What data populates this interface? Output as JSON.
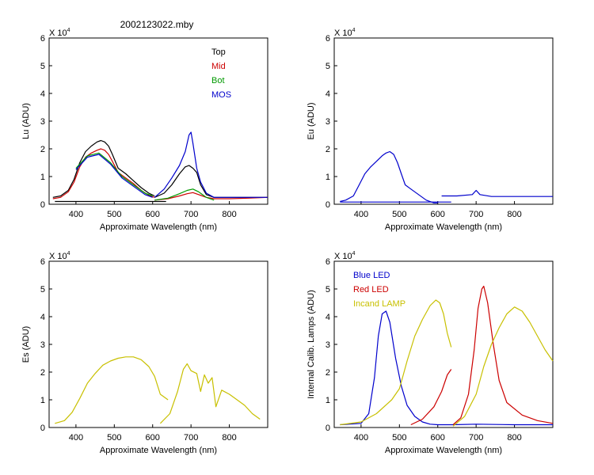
{
  "figure": {
    "title": "2002123022.mby"
  },
  "chart_data": [
    {
      "type": "line",
      "id": "lu",
      "ylabel": "Lu (ADU)",
      "xlabel": "Approximate Wavelength (nm)",
      "multiplier": "X 10",
      "multiplier_exp": "4",
      "xlim": [
        330,
        900
      ],
      "ylim": [
        0,
        6
      ],
      "xticks": [
        "400",
        "500",
        "600",
        "700",
        "800"
      ],
      "xtick_values": [
        400,
        500,
        600,
        700,
        800
      ],
      "yticks": [
        "0",
        "1",
        "2",
        "3",
        "4",
        "5",
        "6"
      ],
      "legend_position": "top-right",
      "legend": [
        {
          "name": "Top",
          "color": "#000000"
        },
        {
          "name": "Mid",
          "color": "#cc0000"
        },
        {
          "name": "Bot",
          "color": "#009900"
        },
        {
          "name": "MOS",
          "color": "#0000cc"
        }
      ],
      "series": [
        {
          "name": "Top",
          "color": "#000000",
          "x": [
            340,
            360,
            380,
            395,
            410,
            425,
            440,
            455,
            465,
            475,
            485,
            495,
            510,
            530,
            550,
            570,
            590,
            605
          ],
          "y": [
            0.25,
            0.3,
            0.5,
            0.9,
            1.5,
            1.9,
            2.1,
            2.25,
            2.3,
            2.25,
            2.1,
            1.8,
            1.3,
            1.1,
            0.85,
            0.6,
            0.4,
            0.3
          ]
        },
        {
          "name": "Mid",
          "color": "#cc0000",
          "x": [
            340,
            360,
            380,
            395,
            410,
            425,
            440,
            455,
            465,
            475,
            485,
            495,
            510,
            530,
            550,
            570,
            590,
            605
          ],
          "y": [
            0.2,
            0.25,
            0.45,
            0.8,
            1.35,
            1.7,
            1.85,
            1.95,
            2.0,
            1.95,
            1.8,
            1.55,
            1.15,
            0.95,
            0.75,
            0.5,
            0.32,
            0.25
          ]
        },
        {
          "name": "Bot",
          "color": "#009900",
          "x": [
            400,
            430,
            460,
            490,
            520,
            550,
            580,
            600
          ],
          "y": [
            1.3,
            1.75,
            1.85,
            1.5,
            1.0,
            0.7,
            0.4,
            0.3
          ]
        },
        {
          "name": "MOS",
          "color": "#0000cc",
          "x": [
            400,
            430,
            460,
            490,
            520,
            550,
            580,
            600
          ],
          "y": [
            1.25,
            1.7,
            1.8,
            1.45,
            0.95,
            0.65,
            0.35,
            0.25
          ]
        },
        {
          "name": "Top (2)",
          "color": "#000000",
          "x": [
            605,
            630,
            650,
            670,
            685,
            695,
            705,
            715,
            725,
            740,
            760,
            800,
            850,
            900
          ],
          "y": [
            0.25,
            0.4,
            0.7,
            1.1,
            1.35,
            1.4,
            1.3,
            1.15,
            0.7,
            0.35,
            0.25,
            0.25,
            0.25,
            0.25
          ]
        },
        {
          "name": "Mid (2)",
          "color": "#cc0000",
          "x": [
            605,
            640,
            670,
            690,
            705,
            720,
            740,
            760,
            800,
            850,
            900
          ],
          "y": [
            0.15,
            0.2,
            0.3,
            0.38,
            0.42,
            0.35,
            0.25,
            0.2,
            0.2,
            0.22,
            0.25
          ]
        },
        {
          "name": "Bot (2)",
          "color": "#009900",
          "x": [
            605,
            640,
            670,
            690,
            705,
            720,
            740,
            760
          ],
          "y": [
            0.15,
            0.22,
            0.38,
            0.5,
            0.55,
            0.45,
            0.25,
            0.15
          ]
        },
        {
          "name": "MOS (2)",
          "color": "#0000cc",
          "x": [
            605,
            630,
            650,
            670,
            685,
            695,
            700,
            705,
            715,
            725,
            740,
            760,
            800,
            850,
            900
          ],
          "y": [
            0.25,
            0.55,
            0.95,
            1.4,
            1.9,
            2.5,
            2.6,
            2.2,
            1.3,
            0.8,
            0.4,
            0.25,
            0.25,
            0.25,
            0.25
          ]
        },
        {
          "name": "baseline",
          "color": "#000000",
          "x": [
            345,
            635
          ],
          "y": [
            0.1,
            0.1
          ]
        }
      ]
    },
    {
      "type": "line",
      "id": "eu",
      "ylabel": "Eu  (ADU)",
      "xlabel": "Approximate Wavelength (nm)",
      "multiplier": "X 10",
      "multiplier_exp": "4",
      "xlim": [
        330,
        900
      ],
      "ylim": [
        0,
        6
      ],
      "xticks": [
        "400",
        "500",
        "600",
        "700",
        "800"
      ],
      "xtick_values": [
        400,
        500,
        600,
        700,
        800
      ],
      "yticks": [
        "0",
        "1",
        "2",
        "3",
        "4",
        "5",
        "6"
      ],
      "legend": [],
      "series": [
        {
          "name": "Eu",
          "color": "#0000cc",
          "x": [
            345,
            360,
            380,
            395,
            410,
            425,
            440,
            455,
            465,
            475,
            485,
            495,
            505,
            515,
            530,
            550,
            570,
            590,
            600
          ],
          "y": [
            0.1,
            0.15,
            0.3,
            0.7,
            1.1,
            1.35,
            1.55,
            1.75,
            1.85,
            1.9,
            1.8,
            1.5,
            1.1,
            0.7,
            0.55,
            0.35,
            0.15,
            0.05,
            0.05
          ]
        },
        {
          "name": "Eu (2)",
          "color": "#0000cc",
          "x": [
            610,
            650,
            690,
            700,
            710,
            740,
            800,
            850,
            900
          ],
          "y": [
            0.3,
            0.3,
            0.35,
            0.5,
            0.35,
            0.28,
            0.28,
            0.28,
            0.28
          ]
        },
        {
          "name": "baseline",
          "color": "#0000cc",
          "x": [
            345,
            635
          ],
          "y": [
            0.08,
            0.08
          ]
        }
      ]
    },
    {
      "type": "line",
      "id": "es",
      "ylabel": "Es  (ADU)",
      "xlabel": "Approximate Wavelength (nm)",
      "multiplier": "X 10",
      "multiplier_exp": "4",
      "xlim": [
        330,
        900
      ],
      "ylim": [
        0,
        6
      ],
      "xticks": [
        "400",
        "500",
        "600",
        "700",
        "800"
      ],
      "xtick_values": [
        400,
        500,
        600,
        700,
        800
      ],
      "yticks": [
        "0",
        "1",
        "2",
        "3",
        "4",
        "5",
        "6"
      ],
      "legend": [],
      "series": [
        {
          "name": "Es",
          "color": "#c8c000",
          "x": [
            345,
            370,
            390,
            410,
            430,
            450,
            470,
            490,
            510,
            530,
            550,
            570,
            590,
            605,
            620,
            640
          ],
          "y": [
            0.15,
            0.25,
            0.55,
            1.05,
            1.6,
            1.95,
            2.25,
            2.4,
            2.5,
            2.55,
            2.55,
            2.45,
            2.2,
            1.85,
            1.2,
            1.0
          ]
        },
        {
          "name": "Es (2)",
          "color": "#c8c000",
          "x": [
            620,
            645,
            665,
            680,
            690,
            700,
            715,
            725,
            735,
            745,
            755,
            765,
            780,
            800,
            820,
            840,
            860,
            880
          ],
          "y": [
            0.15,
            0.5,
            1.3,
            2.1,
            2.3,
            2.05,
            1.95,
            1.3,
            1.9,
            1.6,
            1.8,
            0.75,
            1.35,
            1.2,
            1.0,
            0.8,
            0.5,
            0.3
          ]
        }
      ]
    },
    {
      "type": "line",
      "id": "calib",
      "ylabel": "Internal Calib. Lamps (ADU)",
      "xlabel": "Approximate Wavelength (nm)",
      "multiplier": "X 10",
      "multiplier_exp": "4",
      "xlim": [
        330,
        900
      ],
      "ylim": [
        0,
        6
      ],
      "xticks": [
        "400",
        "500",
        "600",
        "700",
        "800"
      ],
      "xtick_values": [
        400,
        500,
        600,
        700,
        800
      ],
      "yticks": [
        "0",
        "1",
        "2",
        "3",
        "4",
        "5",
        "6"
      ],
      "legend_position": "top-left",
      "legend": [
        {
          "name": "Blue LED",
          "color": "#0000cc"
        },
        {
          "name": "Red LED",
          "color": "#cc0000"
        },
        {
          "name": "Incand LAMP",
          "color": "#c8c000"
        }
      ],
      "series": [
        {
          "name": "Blue LED",
          "color": "#0000cc",
          "x": [
            345,
            400,
            420,
            435,
            445,
            455,
            465,
            475,
            490,
            505,
            520,
            540,
            560,
            580,
            600,
            640
          ],
          "y": [
            0.1,
            0.15,
            0.5,
            1.8,
            3.3,
            4.1,
            4.2,
            3.8,
            2.5,
            1.5,
            0.8,
            0.4,
            0.2,
            0.12,
            0.1,
            0.1
          ]
        },
        {
          "name": "Blue LED (2)",
          "color": "#0000cc",
          "x": [
            640,
            700,
            800,
            850,
            900
          ],
          "y": [
            0.1,
            0.12,
            0.1,
            0.1,
            0.1
          ]
        },
        {
          "name": "Red LED",
          "color": "#cc0000",
          "x": [
            530,
            560,
            590,
            610,
            625,
            635
          ],
          "y": [
            0.1,
            0.3,
            0.75,
            1.3,
            1.9,
            2.1
          ]
        },
        {
          "name": "Red LED (2)",
          "color": "#cc0000",
          "x": [
            640,
            660,
            680,
            695,
            705,
            715,
            720,
            730,
            745,
            760,
            780,
            820,
            860,
            900
          ],
          "y": [
            0.1,
            0.35,
            1.2,
            2.8,
            4.3,
            5.0,
            5.1,
            4.5,
            3.0,
            1.7,
            0.9,
            0.45,
            0.25,
            0.15
          ]
        },
        {
          "name": "Incand LAMP",
          "color": "#c8c000",
          "x": [
            345,
            400,
            440,
            480,
            500,
            510,
            520,
            540,
            560,
            580,
            595,
            605,
            615,
            625,
            635
          ],
          "y": [
            0.1,
            0.2,
            0.5,
            1.0,
            1.4,
            1.9,
            2.4,
            3.3,
            3.9,
            4.4,
            4.6,
            4.5,
            4.1,
            3.4,
            2.9
          ]
        },
        {
          "name": "Incand LAMP (2)",
          "color": "#c8c000",
          "x": [
            640,
            670,
            700,
            720,
            740,
            760,
            780,
            800,
            820,
            840,
            860,
            880,
            900
          ],
          "y": [
            0.05,
            0.4,
            1.2,
            2.2,
            3.0,
            3.6,
            4.1,
            4.35,
            4.2,
            3.8,
            3.3,
            2.8,
            2.4
          ]
        }
      ]
    }
  ]
}
